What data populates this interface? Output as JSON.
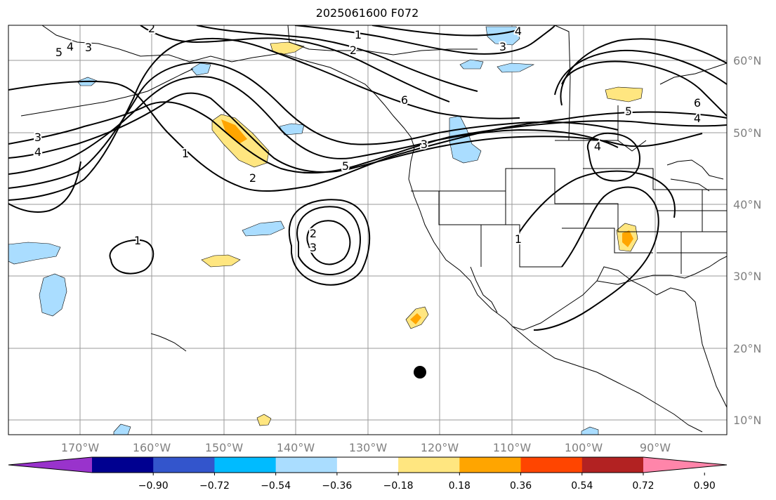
{
  "title": "2025061600 F072",
  "longitude_labels": [
    "170°W",
    "160°W",
    "150°W",
    "140°W",
    "130°W",
    "120°W",
    "110°W",
    "100°W",
    "90°W"
  ],
  "latitude_labels": [
    "60°N",
    "50°N",
    "40°N",
    "30°N",
    "20°N",
    "10°N"
  ],
  "colorbar": {
    "tick_labels": [
      "−0.90",
      "−0.72",
      "−0.54",
      "−0.36",
      "−0.18",
      "0.18",
      "0.36",
      "0.54",
      "0.72",
      "0.90"
    ],
    "colors": [
      "#9933cc",
      "#000090",
      "#3355cc",
      "#00bbff",
      "#aaddff",
      "#ffffff",
      "#ffe680",
      "#ffa500",
      "#ff4500",
      "#b22222",
      "#ff85aa"
    ]
  },
  "contour_labels": [
    "1",
    "2",
    "3",
    "4",
    "5",
    "6",
    "1",
    "2",
    "3",
    "4",
    "5",
    "1",
    "2",
    "3",
    "4",
    "5",
    "6",
    "1",
    "2",
    "3",
    "4",
    "3",
    "4",
    "6",
    "5",
    "4",
    "3",
    "1",
    "1"
  ],
  "marker": "dot"
}
